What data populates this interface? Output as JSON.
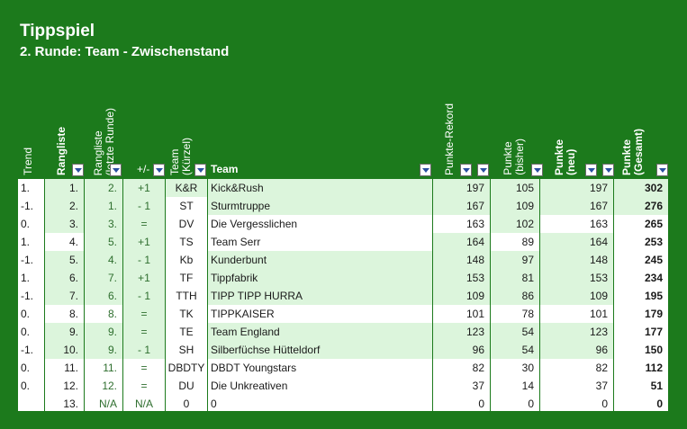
{
  "title": "Tippspiel",
  "subtitle": "2. Runde: Team - Zwischenstand",
  "headers": {
    "trend": "Trend",
    "rangliste": "Rangliste",
    "rangliste_letzte": "Rangliste\n(letzte Runde)",
    "plusminus": "+/-",
    "team_kurz": "Team\n(Kürzel)",
    "team": "Team",
    "rekord": "Punkte-Rekord",
    "bisher": "Punkte\n(bisher)",
    "neu": "Punkte\n(neu)",
    "gesamt": "Punkte\n(Gesamt)"
  },
  "colors": {
    "background": "#1c7a1c",
    "row_light": "#dcf5dc",
    "row_white": "#ffffff",
    "text_green": "#2e6e2e",
    "filter_arrow": "#2a4fa0"
  },
  "rows": [
    {
      "trend": "1.",
      "rank": "1.",
      "last": "2.",
      "pm": "+1",
      "kurz": "K&R",
      "team": "Kick&Rush",
      "rekord": "197",
      "bisher": "105",
      "neu": "197",
      "gesamt": "302"
    },
    {
      "trend": "-1.",
      "rank": "2.",
      "last": "1.",
      "pm": "- 1",
      "kurz": "ST",
      "team": "Sturmtruppe",
      "rekord": "167",
      "bisher": "109",
      "neu": "167",
      "gesamt": "276"
    },
    {
      "trend": "0.",
      "rank": "3.",
      "last": "3.",
      "pm": "=",
      "kurz": "DV",
      "team": "Die Vergesslichen",
      "rekord": "163",
      "bisher": "102",
      "neu": "163",
      "gesamt": "265"
    },
    {
      "trend": "1.",
      "rank": "4.",
      "last": "5.",
      "pm": "+1",
      "kurz": "TS",
      "team": "Team Serr",
      "rekord": "164",
      "bisher": "89",
      "neu": "164",
      "gesamt": "253"
    },
    {
      "trend": "-1.",
      "rank": "5.",
      "last": "4.",
      "pm": "- 1",
      "kurz": "Kb",
      "team": "Kunderbunt",
      "rekord": "148",
      "bisher": "97",
      "neu": "148",
      "gesamt": "245"
    },
    {
      "trend": "1.",
      "rank": "6.",
      "last": "7.",
      "pm": "+1",
      "kurz": "TF",
      "team": "Tippfabrik",
      "rekord": "153",
      "bisher": "81",
      "neu": "153",
      "gesamt": "234"
    },
    {
      "trend": "-1.",
      "rank": "7.",
      "last": "6.",
      "pm": "- 1",
      "kurz": "TTH",
      "team": "TIPP TIPP HURRA",
      "rekord": "109",
      "bisher": "86",
      "neu": "109",
      "gesamt": "195"
    },
    {
      "trend": "0.",
      "rank": "8.",
      "last": "8.",
      "pm": "=",
      "kurz": "TK",
      "team": "TIPPKAISER",
      "rekord": "101",
      "bisher": "78",
      "neu": "101",
      "gesamt": "179"
    },
    {
      "trend": "0.",
      "rank": "9.",
      "last": "9.",
      "pm": "=",
      "kurz": "TE",
      "team": "Team England",
      "rekord": "123",
      "bisher": "54",
      "neu": "123",
      "gesamt": "177"
    },
    {
      "trend": "-1.",
      "rank": "10.",
      "last": "9.",
      "pm": "- 1",
      "kurz": "SH",
      "team": "Silberfüchse Hütteldorf",
      "rekord": "96",
      "bisher": "54",
      "neu": "96",
      "gesamt": "150"
    },
    {
      "trend": "0.",
      "rank": "11.",
      "last": "11.",
      "pm": "=",
      "kurz": "DBDTY",
      "team": "DBDT Youngstars",
      "rekord": "82",
      "bisher": "30",
      "neu": "82",
      "gesamt": "112"
    },
    {
      "trend": "0.",
      "rank": "12.",
      "last": "12.",
      "pm": "=",
      "kurz": "DU",
      "team": "Die Unkreativen",
      "rekord": "37",
      "bisher": "14",
      "neu": "37",
      "gesamt": "51"
    },
    {
      "trend": "",
      "rank": "13.",
      "last": "N/A",
      "pm": "N/A",
      "kurz": "0",
      "team": "0",
      "rekord": "0",
      "bisher": "0",
      "neu": "0",
      "gesamt": "0"
    }
  ]
}
